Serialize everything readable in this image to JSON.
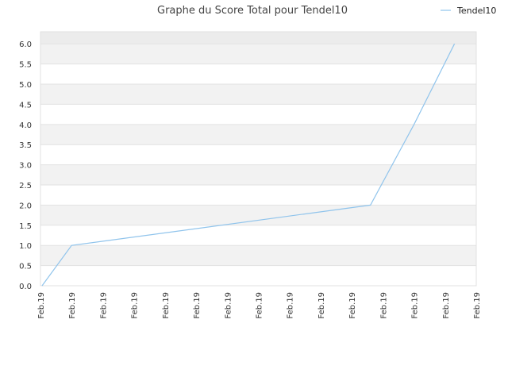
{
  "chart_data": {
    "type": "line",
    "title": "Graphe du Score Total pour Tendel10",
    "xlabel": "",
    "ylabel": "",
    "x_tick_labels": [
      "Feb.19",
      "Feb.19",
      "Feb.19",
      "Feb.19",
      "Feb.19",
      "Feb.19",
      "Feb.19",
      "Feb.19",
      "Feb.19",
      "Feb.19",
      "Feb.19",
      "Feb.19",
      "Feb.19",
      "Feb.19",
      "Feb.19"
    ],
    "xlim": [
      0,
      14
    ],
    "ylim": [
      0,
      6.3
    ],
    "y_ticks": [
      0.0,
      0.5,
      1.0,
      1.5,
      2.0,
      2.5,
      3.0,
      3.5,
      4.0,
      4.5,
      5.0,
      5.5,
      6.0
    ],
    "y_tick_labels": [
      "0.0",
      "0.5",
      "1.0",
      "1.5",
      "2.0",
      "2.5",
      "3.0",
      "3.5",
      "4.0",
      "4.5",
      "5.0",
      "5.5",
      "6.0"
    ],
    "series": [
      {
        "name": "Tendel10",
        "color": "#90c4ec",
        "x": [
          0.05,
          1.0,
          10.6,
          12.0,
          13.3
        ],
        "values": [
          0,
          1.0,
          2.0,
          4.0,
          6.0
        ]
      }
    ],
    "legend_position": "top-right",
    "grid": "alternating horizontal bands",
    "band_colors": [
      "#f2f2f2",
      "#ffffff"
    ],
    "top_band_color": "#ececec"
  }
}
